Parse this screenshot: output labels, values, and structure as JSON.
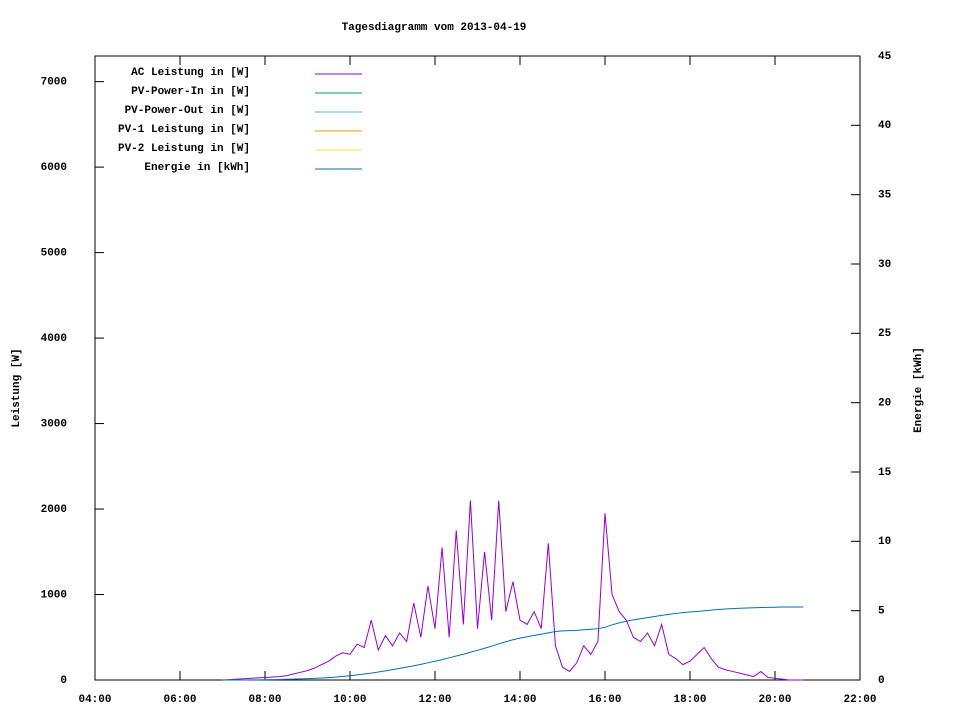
{
  "chart_data": {
    "type": "line",
    "title": "Tagesdiagramm vom 2013-04-19",
    "y_label": "Leistung [W]",
    "y2_label": "Energie [kWh]",
    "x": [
      "07:00",
      "07:10",
      "07:20",
      "07:30",
      "07:40",
      "07:50",
      "08:00",
      "08:10",
      "08:20",
      "08:30",
      "08:40",
      "08:50",
      "09:00",
      "09:10",
      "09:20",
      "09:30",
      "09:40",
      "09:50",
      "10:00",
      "10:10",
      "10:20",
      "10:30",
      "10:40",
      "10:50",
      "11:00",
      "11:10",
      "11:20",
      "11:30",
      "11:40",
      "11:50",
      "12:00",
      "12:10",
      "12:20",
      "12:30",
      "12:40",
      "12:50",
      "13:00",
      "13:10",
      "13:20",
      "13:30",
      "13:40",
      "13:50",
      "14:00",
      "14:10",
      "14:20",
      "14:30",
      "14:40",
      "14:50",
      "15:00",
      "15:10",
      "15:20",
      "15:30",
      "15:40",
      "15:50",
      "16:00",
      "16:10",
      "16:20",
      "16:30",
      "16:40",
      "16:50",
      "17:00",
      "17:10",
      "17:20",
      "17:30",
      "17:40",
      "17:50",
      "18:00",
      "18:10",
      "18:20",
      "18:30",
      "18:40",
      "18:50",
      "19:00",
      "19:10",
      "19:20",
      "19:30",
      "19:40",
      "19:50",
      "20:00",
      "20:10",
      "20:20",
      "20:30",
      "20:40"
    ],
    "xlim": [
      "04:00",
      "22:00"
    ],
    "xticks": [
      "04:00",
      "06:00",
      "08:00",
      "10:00",
      "12:00",
      "14:00",
      "16:00",
      "18:00",
      "20:00",
      "22:00"
    ],
    "ylim": [
      0,
      7300
    ],
    "yticks": [
      0,
      1000,
      2000,
      3000,
      4000,
      5000,
      6000,
      7000
    ],
    "y2lim": [
      0,
      45
    ],
    "y2ticks": [
      0,
      5,
      10,
      15,
      20,
      25,
      30,
      35,
      40,
      45
    ],
    "legend": "top-left",
    "series": [
      {
        "name": "AC Leistung in [W]",
        "color": "#9400d3",
        "values": [
          0,
          5,
          10,
          15,
          20,
          25,
          30,
          35,
          40,
          50,
          70,
          90,
          110,
          140,
          180,
          220,
          280,
          320,
          300,
          420,
          380,
          700,
          350,
          520,
          400,
          550,
          450,
          900,
          500,
          1100,
          600,
          1550,
          500,
          1750,
          650,
          2100,
          600,
          1500,
          700,
          2100,
          800,
          1150,
          700,
          650,
          800,
          600,
          1600,
          400,
          150,
          100,
          200,
          400,
          300,
          450,
          1950,
          1000,
          800,
          700,
          500,
          450,
          550,
          400,
          650,
          300,
          250,
          180,
          220,
          300,
          380,
          250,
          150,
          120,
          100,
          80,
          60,
          40,
          100,
          30,
          20,
          10,
          0,
          0,
          0
        ]
      },
      {
        "name": "PV-Power-In in [W]",
        "color": "#009e73",
        "values": [
          null,
          null,
          null,
          null,
          null,
          null,
          null,
          null,
          null,
          null,
          null,
          null,
          null,
          null,
          null,
          null,
          null,
          null,
          null,
          null,
          null,
          null,
          null,
          null,
          null,
          null,
          null,
          null,
          null,
          null,
          null,
          null,
          null,
          null,
          null,
          null,
          null,
          null,
          null,
          null,
          null,
          null,
          null,
          null,
          null,
          null,
          null,
          null,
          null,
          null,
          null,
          null,
          null,
          null,
          null,
          null,
          null,
          null,
          null,
          null,
          null,
          null,
          null,
          null,
          null,
          null,
          null,
          null,
          null,
          null,
          null,
          null,
          null,
          null,
          null,
          null,
          null,
          null,
          null,
          null,
          null,
          null,
          null
        ]
      },
      {
        "name": "PV-Power-Out in [W]",
        "color": "#56b4e9",
        "values": [
          null,
          null,
          null,
          null,
          null,
          null,
          null,
          null,
          null,
          null,
          null,
          null,
          null,
          null,
          null,
          null,
          null,
          null,
          null,
          null,
          null,
          null,
          null,
          null,
          null,
          null,
          null,
          null,
          null,
          null,
          null,
          null,
          null,
          null,
          null,
          null,
          null,
          null,
          null,
          null,
          null,
          null,
          null,
          null,
          null,
          null,
          null,
          null,
          null,
          null,
          null,
          null,
          null,
          null,
          null,
          null,
          null,
          null,
          null,
          null,
          null,
          null,
          null,
          null,
          null,
          null,
          null,
          null,
          null,
          null,
          null,
          null,
          null,
          null,
          null,
          null,
          null,
          null,
          null,
          null,
          null,
          null,
          null
        ]
      },
      {
        "name": "PV-1 Leistung in [W]",
        "color": "#e69f00",
        "values": [
          null,
          null,
          null,
          null,
          null,
          null,
          null,
          null,
          null,
          null,
          null,
          null,
          null,
          null,
          null,
          null,
          null,
          null,
          null,
          null,
          null,
          null,
          null,
          null,
          null,
          null,
          null,
          null,
          null,
          null,
          null,
          null,
          null,
          null,
          null,
          null,
          null,
          null,
          null,
          null,
          null,
          null,
          null,
          null,
          null,
          null,
          null,
          null,
          null,
          null,
          null,
          null,
          null,
          null,
          null,
          null,
          null,
          null,
          null,
          null,
          null,
          null,
          null,
          null,
          null,
          null,
          null,
          null,
          null,
          null,
          null,
          null,
          null,
          null,
          null,
          null,
          null,
          null,
          null,
          null,
          null,
          null,
          null
        ]
      },
      {
        "name": "PV-2 Leistung in [W]",
        "color": "#f0e442",
        "values": [
          null,
          null,
          null,
          null,
          null,
          null,
          null,
          null,
          null,
          null,
          null,
          null,
          null,
          null,
          null,
          null,
          null,
          null,
          null,
          null,
          null,
          null,
          null,
          null,
          null,
          null,
          null,
          null,
          null,
          null,
          null,
          null,
          null,
          null,
          null,
          null,
          null,
          null,
          null,
          null,
          null,
          null,
          null,
          null,
          null,
          null,
          null,
          null,
          null,
          null,
          null,
          null,
          null,
          null,
          null,
          null,
          null,
          null,
          null,
          null,
          null,
          null,
          null,
          null,
          null,
          null,
          null,
          null,
          null,
          null,
          null,
          null,
          null,
          null,
          null,
          null,
          null,
          null,
          null,
          null,
          null,
          null,
          null
        ]
      },
      {
        "name": "Energie in [kWh]",
        "color": "#0072b2",
        "axis": "y2",
        "values": [
          0,
          0,
          0,
          0,
          0.01,
          0.01,
          0.02,
          0.03,
          0.04,
          0.05,
          0.06,
          0.08,
          0.1,
          0.12,
          0.14,
          0.17,
          0.21,
          0.26,
          0.31,
          0.37,
          0.43,
          0.5,
          0.58,
          0.66,
          0.75,
          0.84,
          0.93,
          1.03,
          1.13,
          1.24,
          1.35,
          1.47,
          1.6,
          1.73,
          1.86,
          2.0,
          2.14,
          2.29,
          2.44,
          2.6,
          2.76,
          2.9,
          3.02,
          3.12,
          3.22,
          3.3,
          3.4,
          3.5,
          3.54,
          3.56,
          3.58,
          3.62,
          3.66,
          3.7,
          3.8,
          3.98,
          4.12,
          4.24,
          4.34,
          4.42,
          4.5,
          4.58,
          4.66,
          4.73,
          4.8,
          4.86,
          4.9,
          4.94,
          4.99,
          5.04,
          5.08,
          5.12,
          5.15,
          5.17,
          5.19,
          5.21,
          5.23,
          5.24,
          5.25,
          5.26,
          5.26,
          5.26,
          5.26
        ]
      }
    ]
  }
}
